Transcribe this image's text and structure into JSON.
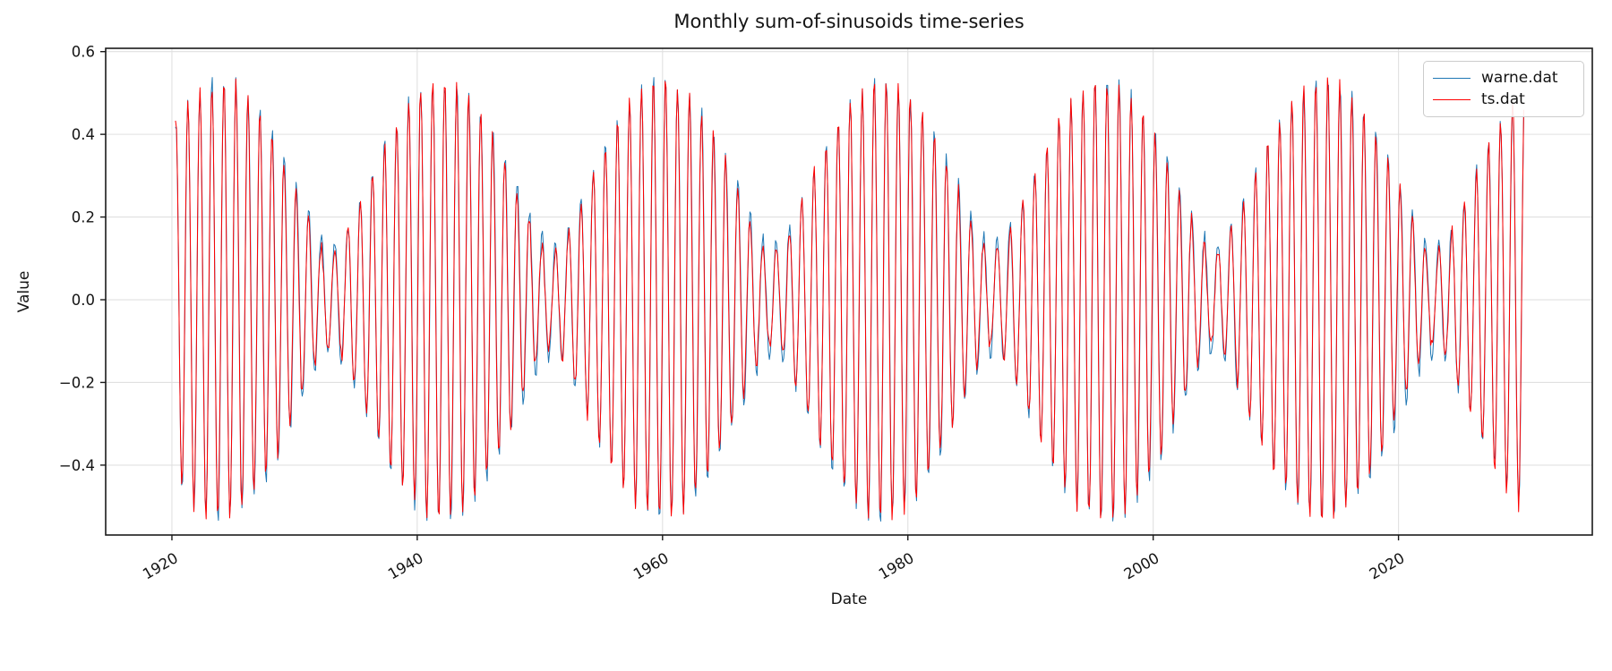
{
  "chart_data": {
    "type": "line",
    "title": "Monthly sum-of-sinusoids time-series",
    "xlabel": "Date",
    "ylabel": "Value",
    "grid": true,
    "background": "#ffffff",
    "grid_color": "#e0e0e0",
    "axis_color": "#1a1a1a",
    "x_axis": {
      "unit": "year",
      "lim": [
        1914.6,
        2035.8
      ],
      "ticks": [
        1920,
        1940,
        1960,
        1980,
        2000,
        2020
      ],
      "tick_labels": [
        "1920",
        "1940",
        "1960",
        "1980",
        "2000",
        "2020"
      ],
      "tick_label_rotation_deg": 30
    },
    "y_axis": {
      "lim": [
        -0.569,
        0.608
      ],
      "ticks": [
        0.6,
        0.4,
        0.2,
        0.0,
        -0.2,
        -0.4
      ],
      "tick_labels": [
        "0.6",
        "0.4",
        "0.2",
        "0.0",
        "−0.2",
        "−0.4"
      ]
    },
    "legend": {
      "position": "upper right",
      "entries": [
        "warne.dat",
        "ts.dat"
      ]
    },
    "sampling": "monthly",
    "x_start_year": 1920.2917,
    "n_points": 1320,
    "series": [
      {
        "name": "warne.dat",
        "color": "#1f77b4",
        "line_width": 1,
        "components": [
          {
            "amplitude": 0.335,
            "period_years": 1.0,
            "phase_rad": 0.0
          },
          {
            "amplitude": 0.2,
            "period_years": 0.947368,
            "phase_rad": -1.4
          }
        ],
        "noise": {
          "amplitude": 0.016,
          "seed": 3
        }
      },
      {
        "name": "ts.dat",
        "color": "#ff0000",
        "line_width": 1,
        "components": [
          {
            "amplitude": 0.322,
            "period_years": 1.0,
            "phase_rad": 0.04
          },
          {
            "amplitude": 0.21,
            "period_years": 0.947368,
            "phase_rad": -1.33
          }
        ],
        "noise": {
          "amplitude": 0.016,
          "seed": 17
        }
      }
    ],
    "description": "Two nearly identical monthly time series from ~1920-04 to ~2030-03; each is a sum of two sinusoids (12-month and ~11.4-month periods) producing an ~18-year beat envelope. Envelope maxima (~±0.55) near 1924, 1942, 1960, 1978, 1996, 2014; envelope minima (~±0.13) near 1933, 1951, 1969, 1987, 2005, 2023."
  }
}
